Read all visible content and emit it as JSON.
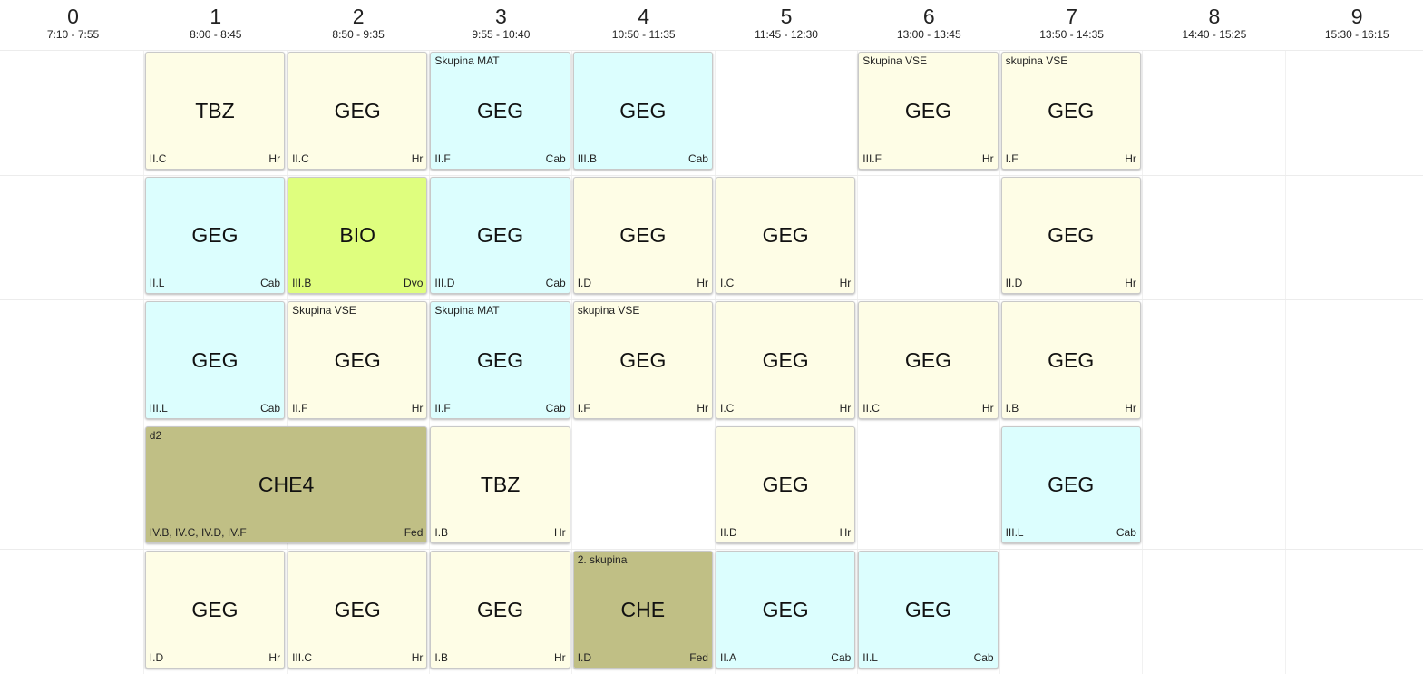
{
  "colors": {
    "yellow": "#fefde6",
    "cyan": "#dcfefe",
    "green": "#dffe7e",
    "olive": "#c0bf85"
  },
  "periods": [
    {
      "num": "0",
      "time": "7:10 - 7:55"
    },
    {
      "num": "1",
      "time": "8:00 - 8:45"
    },
    {
      "num": "2",
      "time": "8:50 - 9:35"
    },
    {
      "num": "3",
      "time": "9:55 - 10:40"
    },
    {
      "num": "4",
      "time": "10:50 - 11:35"
    },
    {
      "num": "5",
      "time": "11:45 - 12:30"
    },
    {
      "num": "6",
      "time": "13:00 - 13:45"
    },
    {
      "num": "7",
      "time": "13:50 - 14:35"
    },
    {
      "num": "8",
      "time": "14:40 - 15:25"
    },
    {
      "num": "9",
      "time": "15:30 - 16:15"
    }
  ],
  "days": [
    [
      {
        "period": 1,
        "span": 1,
        "subject": "TBZ",
        "class": "II.C",
        "teacher": "Hr",
        "color": "yellow"
      },
      {
        "period": 2,
        "span": 1,
        "subject": "GEG",
        "class": "II.C",
        "teacher": "Hr",
        "color": "yellow"
      },
      {
        "period": 3,
        "span": 1,
        "subject": "GEG",
        "class": "II.F",
        "teacher": "Cab",
        "color": "cyan",
        "group": "Skupina MAT"
      },
      {
        "period": 4,
        "span": 1,
        "subject": "GEG",
        "class": "III.B",
        "teacher": "Cab",
        "color": "cyan"
      },
      {
        "period": 6,
        "span": 1,
        "subject": "GEG",
        "class": "III.F",
        "teacher": "Hr",
        "color": "yellow",
        "group": "Skupina VSE"
      },
      {
        "period": 7,
        "span": 1,
        "subject": "GEG",
        "class": "I.F",
        "teacher": "Hr",
        "color": "yellow",
        "group": "skupina VSE"
      }
    ],
    [
      {
        "period": 1,
        "span": 1,
        "subject": "GEG",
        "class": "II.L",
        "teacher": "Cab",
        "color": "cyan"
      },
      {
        "period": 2,
        "span": 1,
        "subject": "BIO",
        "class": "III.B",
        "teacher": "Dvo",
        "color": "green"
      },
      {
        "period": 3,
        "span": 1,
        "subject": "GEG",
        "class": "III.D",
        "teacher": "Cab",
        "color": "cyan"
      },
      {
        "period": 4,
        "span": 1,
        "subject": "GEG",
        "class": "I.D",
        "teacher": "Hr",
        "color": "yellow"
      },
      {
        "period": 5,
        "span": 1,
        "subject": "GEG",
        "class": "I.C",
        "teacher": "Hr",
        "color": "yellow"
      },
      {
        "period": 7,
        "span": 1,
        "subject": "GEG",
        "class": "II.D",
        "teacher": "Hr",
        "color": "yellow"
      }
    ],
    [
      {
        "period": 1,
        "span": 1,
        "subject": "GEG",
        "class": "III.L",
        "teacher": "Cab",
        "color": "cyan"
      },
      {
        "period": 2,
        "span": 1,
        "subject": "GEG",
        "class": "II.F",
        "teacher": "Hr",
        "color": "yellow",
        "group": "Skupina VSE"
      },
      {
        "period": 3,
        "span": 1,
        "subject": "GEG",
        "class": "II.F",
        "teacher": "Cab",
        "color": "cyan",
        "group": "Skupina MAT"
      },
      {
        "period": 4,
        "span": 1,
        "subject": "GEG",
        "class": "I.F",
        "teacher": "Hr",
        "color": "yellow",
        "group": "skupina VSE"
      },
      {
        "period": 5,
        "span": 1,
        "subject": "GEG",
        "class": "I.C",
        "teacher": "Hr",
        "color": "yellow"
      },
      {
        "period": 6,
        "span": 1,
        "subject": "GEG",
        "class": "II.C",
        "teacher": "Hr",
        "color": "yellow"
      },
      {
        "period": 7,
        "span": 1,
        "subject": "GEG",
        "class": "I.B",
        "teacher": "Hr",
        "color": "yellow"
      }
    ],
    [
      {
        "period": 1,
        "span": 2,
        "subject": "CHE4",
        "class": "IV.B, IV.C, IV.D, IV.F",
        "teacher": "Fed",
        "color": "olive",
        "group": "d2"
      },
      {
        "period": 3,
        "span": 1,
        "subject": "TBZ",
        "class": "I.B",
        "teacher": "Hr",
        "color": "yellow"
      },
      {
        "period": 5,
        "span": 1,
        "subject": "GEG",
        "class": "II.D",
        "teacher": "Hr",
        "color": "yellow"
      },
      {
        "period": 7,
        "span": 1,
        "subject": "GEG",
        "class": "III.L",
        "teacher": "Cab",
        "color": "cyan"
      }
    ],
    [
      {
        "period": 1,
        "span": 1,
        "subject": "GEG",
        "class": "I.D",
        "teacher": "Hr",
        "color": "yellow"
      },
      {
        "period": 2,
        "span": 1,
        "subject": "GEG",
        "class": "III.C",
        "teacher": "Hr",
        "color": "yellow"
      },
      {
        "period": 3,
        "span": 1,
        "subject": "GEG",
        "class": "I.B",
        "teacher": "Hr",
        "color": "yellow"
      },
      {
        "period": 4,
        "span": 1,
        "subject": "CHE",
        "class": "I.D",
        "teacher": "Fed",
        "color": "olive",
        "group": "2. skupina"
      },
      {
        "period": 5,
        "span": 1,
        "subject": "GEG",
        "class": "II.A",
        "teacher": "Cab",
        "color": "cyan"
      },
      {
        "period": 6,
        "span": 1,
        "subject": "GEG",
        "class": "II.L",
        "teacher": "Cab",
        "color": "cyan"
      }
    ]
  ]
}
